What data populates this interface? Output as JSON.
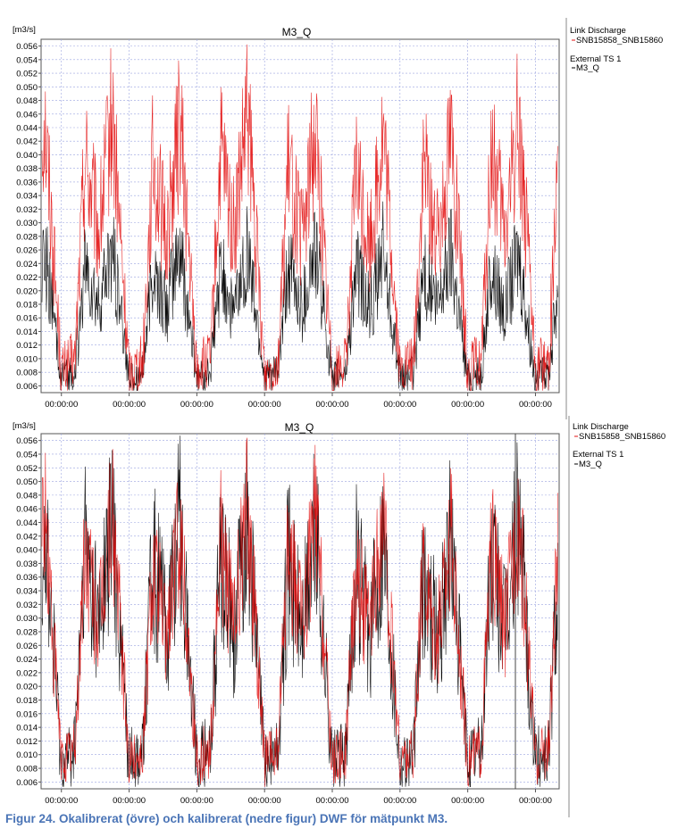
{
  "caption": "Figur 24. Okalibrerat (övre) och kalibrerat (nedre figur) DWF för mätpunkt M3.",
  "colors": {
    "series_model": "#e31010",
    "series_measured": "#000000",
    "grid": "#9aa3e0",
    "axis": "#555555"
  },
  "chart_data": [
    {
      "type": "line",
      "title": "M3_Q",
      "ylabel": "[m3/s]",
      "ylim": [
        0.005,
        0.057
      ],
      "yticks": [
        0.006,
        0.008,
        0.01,
        0.012,
        0.014,
        0.016,
        0.018,
        0.02,
        0.022,
        0.024,
        0.026,
        0.028,
        0.03,
        0.032,
        0.034,
        0.036,
        0.038,
        0.04,
        0.042,
        0.044,
        0.046,
        0.048,
        0.05,
        0.052,
        0.054,
        0.056
      ],
      "ytick_labels": [
        "0.006",
        "0.008",
        "0.010",
        "0.012",
        "0.014",
        "0.016",
        "0.018",
        "0.020",
        "0.022",
        "0.024",
        "0.026",
        "0.028",
        "0.030",
        "0.032",
        "0.034",
        "0.036",
        "0.038",
        "0.040",
        "0.042",
        "0.044",
        "0.046",
        "0.048",
        "0.050",
        "0.052",
        "0.054",
        "0.056"
      ],
      "xtick_labels": [
        "00:00:00",
        "00:00:00",
        "00:00:00",
        "00:00:00",
        "00:00:00",
        "00:00:00",
        "00:00:00",
        "00:00:00"
      ],
      "grid": true,
      "legend_position": "right",
      "legend": [
        {
          "group": "Link Discharge",
          "entry": "SNB15858_SNB15860"
        },
        {
          "group": "External TS 1",
          "entry": "M3_Q"
        }
      ],
      "series": [
        {
          "name": "SNB15858_SNB15860",
          "color": "#e31010",
          "day_peaks": [
            0.046,
            0.045,
            0.046,
            0.044,
            0.043,
            0.044,
            0.046,
            0.049
          ],
          "night_min": 0.006
        },
        {
          "name": "M3_Q",
          "color": "#000000",
          "day_peaks": [
            0.026,
            0.026,
            0.026,
            0.026,
            0.026,
            0.026,
            0.026,
            0.026
          ],
          "night_min": 0.006
        }
      ]
    },
    {
      "type": "line",
      "title": "M3_Q",
      "ylabel": "[m3/s]",
      "ylim": [
        0.005,
        0.057
      ],
      "yticks": [
        0.006,
        0.008,
        0.01,
        0.012,
        0.014,
        0.016,
        0.018,
        0.02,
        0.022,
        0.024,
        0.026,
        0.028,
        0.03,
        0.032,
        0.034,
        0.036,
        0.038,
        0.04,
        0.042,
        0.044,
        0.046,
        0.048,
        0.05,
        0.052,
        0.054,
        0.056
      ],
      "ytick_labels": [
        "0.006",
        "0.008",
        "0.010",
        "0.012",
        "0.014",
        "0.016",
        "0.018",
        "0.020",
        "0.022",
        "0.024",
        "0.026",
        "0.028",
        "0.030",
        "0.032",
        "0.034",
        "0.036",
        "0.038",
        "0.040",
        "0.042",
        "0.044",
        "0.046",
        "0.048",
        "0.050",
        "0.052",
        "0.054",
        "0.056"
      ],
      "xtick_labels": [
        "00:00:00",
        "00:00:00",
        "00:00:00",
        "00:00:00",
        "00:00:00",
        "00:00:00",
        "00:00:00",
        "00:00:00"
      ],
      "grid": true,
      "legend_position": "right",
      "legend": [
        {
          "group": "Link Discharge",
          "entry": "SNB15858_SNB15860"
        },
        {
          "group": "External TS 1",
          "entry": "M3_Q"
        }
      ],
      "series": [
        {
          "name": "SNB15858_SNB15860",
          "color": "#e31010",
          "day_peaks": [
            0.046,
            0.044,
            0.047,
            0.046,
            0.044,
            0.043,
            0.046,
            0.05
          ],
          "night_min": 0.007
        },
        {
          "name": "M3_Q",
          "color": "#000000",
          "day_peaks": [
            0.045,
            0.044,
            0.045,
            0.044,
            0.043,
            0.042,
            0.045,
            0.048
          ],
          "night_min": 0.007
        }
      ]
    }
  ]
}
